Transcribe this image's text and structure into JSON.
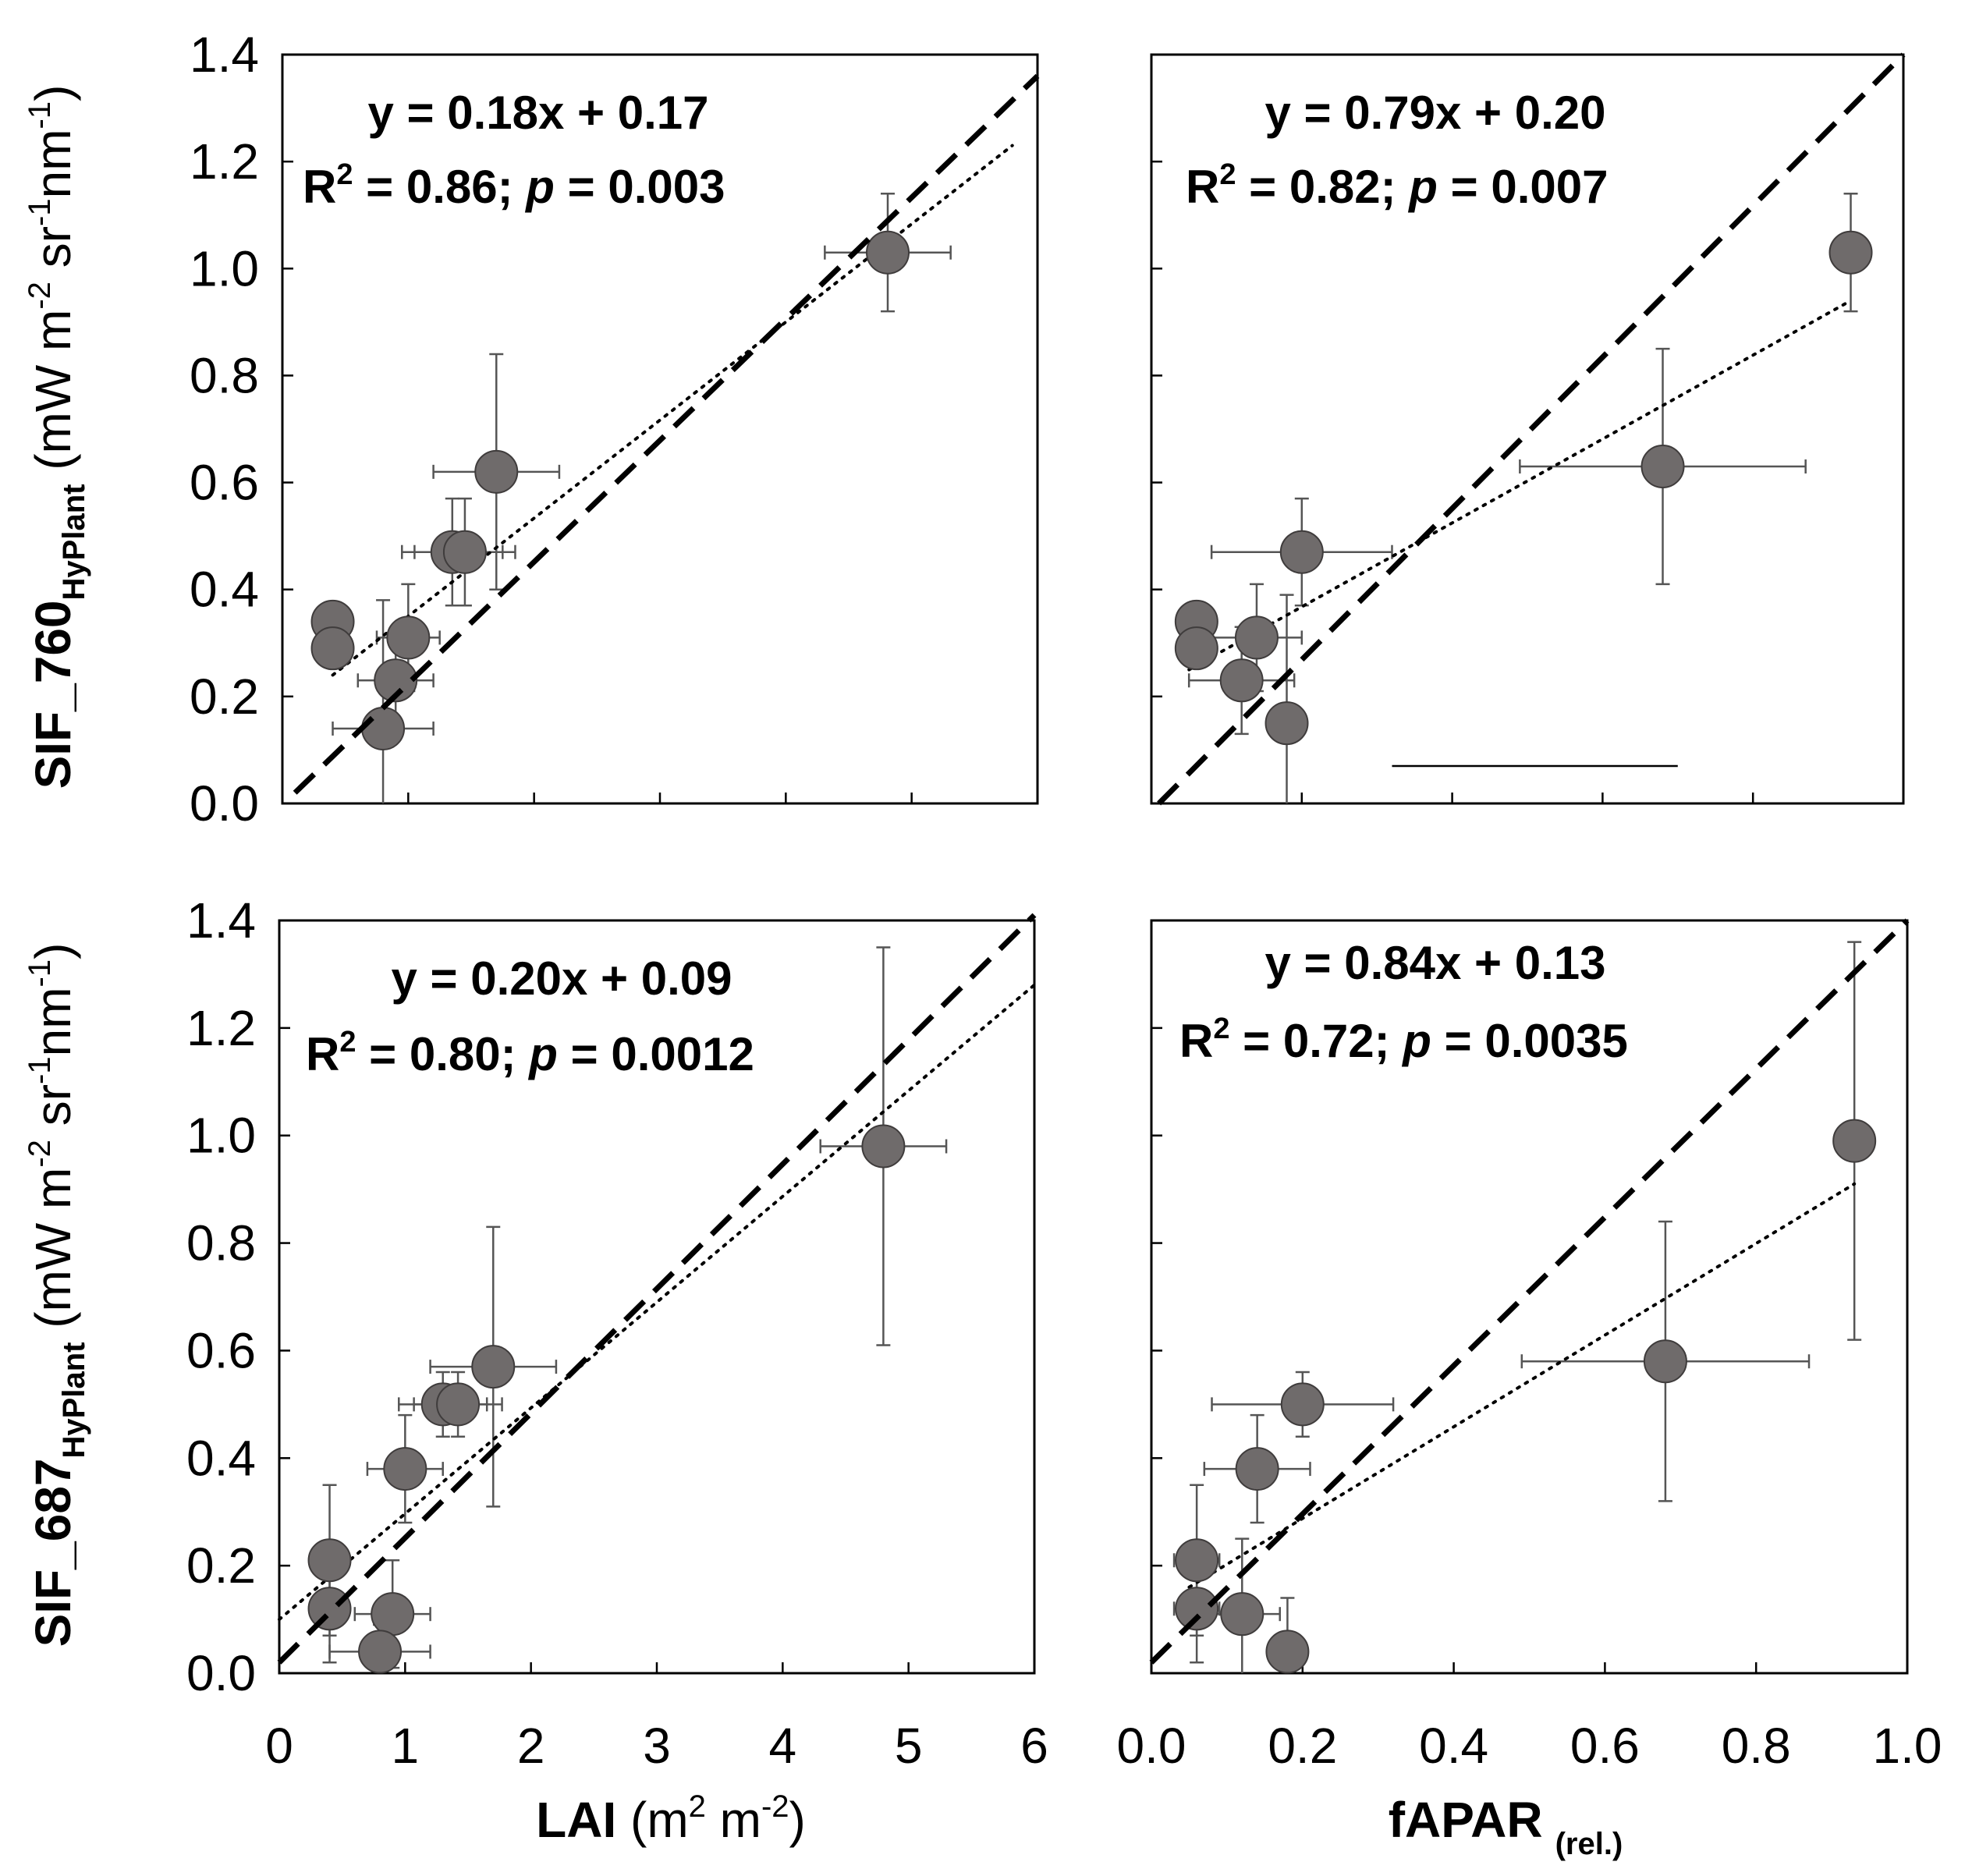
{
  "chart_data": [
    {
      "id": "p1",
      "type": "scatter",
      "annotations": {
        "equation": "y = 0.18x + 0.17",
        "r2_prefix": "R",
        "r2_sup": "2",
        "r2_mid": " = 0.86; ",
        "p_symbol": "p",
        "p_value": " = 0.003"
      },
      "xlim": [
        0,
        6
      ],
      "ylim": [
        0,
        1.4
      ],
      "x_ticks": [
        0,
        1,
        2,
        3,
        4,
        5,
        6
      ],
      "y_ticks": [
        0,
        0.2,
        0.4,
        0.6,
        0.8,
        1.0,
        1.2,
        1.4
      ],
      "y_tick_labels": [
        "0.0",
        "0.2",
        "0.4",
        "0.6",
        "0.8",
        "1.0",
        "1.2",
        "1.4"
      ],
      "dashed_line": {
        "x": [
          0.1,
          6
        ],
        "y": [
          0.02,
          1.36
        ]
      },
      "dotted_line": {
        "x": [
          0.4,
          5.8
        ],
        "y": [
          0.24,
          1.23
        ]
      },
      "points": [
        {
          "x": 4.81,
          "y": 1.03,
          "xerr": 0.5,
          "yerr": 0.11
        },
        {
          "x": 1.7,
          "y": 0.62,
          "xerr": 0.5,
          "yerr": 0.22
        },
        {
          "x": 1.35,
          "y": 0.47,
          "xerr": 0.4,
          "yerr": 0.1
        },
        {
          "x": 1.45,
          "y": 0.47,
          "xerr": 0.4,
          "yerr": 0.1
        },
        {
          "x": 0.4,
          "y": 0.34,
          "xerr": 0,
          "yerr": 0
        },
        {
          "x": 0.4,
          "y": 0.29,
          "xerr": 0,
          "yerr": 0
        },
        {
          "x": 1.0,
          "y": 0.31,
          "xerr": 0.25,
          "yerr": 0.1
        },
        {
          "x": 0.9,
          "y": 0.23,
          "xerr": 0.3,
          "yerr": 0.08
        },
        {
          "x": 0.8,
          "y": 0.14,
          "xerr": 0.4,
          "yerr": 0.24
        }
      ]
    },
    {
      "id": "p2",
      "type": "scatter",
      "annotations": {
        "equation": "y = 0.79x + 0.20",
        "r2_prefix": "R",
        "r2_sup": "2",
        "r2_mid": " = 0.82; ",
        "p_symbol": "p",
        "p_value": " = 0.007"
      },
      "xlim": [
        0,
        1.0
      ],
      "ylim": [
        0,
        1.4
      ],
      "x_ticks": [
        0,
        0.2,
        0.4,
        0.6,
        0.8,
        1.0
      ],
      "y_ticks": [
        0,
        0.2,
        0.4,
        0.6,
        0.8,
        1.0,
        1.2,
        1.4
      ],
      "dashed_line": {
        "x": [
          0.01,
          1.0
        ],
        "y": [
          0.0,
          1.4
        ]
      },
      "dotted_line": {
        "x": [
          0.05,
          0.93
        ],
        "y": [
          0.25,
          0.94
        ]
      },
      "stray_line": {
        "x": [
          0.32,
          0.7
        ],
        "y": [
          0.07,
          0.07
        ]
      },
      "points": [
        {
          "x": 0.93,
          "y": 1.03,
          "xerr": 0,
          "yerr": 0.11
        },
        {
          "x": 0.68,
          "y": 0.63,
          "xerr": 0.19,
          "yerr": 0.22
        },
        {
          "x": 0.2,
          "y": 0.47,
          "xerr": 0.12,
          "yerr": 0.1
        },
        {
          "x": 0.06,
          "y": 0.34,
          "xerr": 0.02,
          "yerr": 0
        },
        {
          "x": 0.06,
          "y": 0.29,
          "xerr": 0.02,
          "yerr": 0
        },
        {
          "x": 0.14,
          "y": 0.31,
          "xerr": 0.06,
          "yerr": 0.1
        },
        {
          "x": 0.12,
          "y": 0.23,
          "xerr": 0.07,
          "yerr": 0.1
        },
        {
          "x": 0.18,
          "y": 0.15,
          "xerr": 0.02,
          "yerr": 0.24
        }
      ]
    },
    {
      "id": "p3",
      "type": "scatter",
      "annotations": {
        "equation": "y = 0.20x + 0.09",
        "r2_prefix": "R",
        "r2_sup": "2",
        "r2_mid": " = 0.80; ",
        "p_symbol": "p",
        "p_value": " = 0.0012"
      },
      "xlim": [
        0,
        6
      ],
      "ylim": [
        0,
        1.4
      ],
      "x_ticks": [
        0,
        1,
        2,
        3,
        4,
        5,
        6
      ],
      "y_ticks": [
        0,
        0.2,
        0.4,
        0.6,
        0.8,
        1.0,
        1.2,
        1.4
      ],
      "y_tick_labels": [
        "0.0",
        "0.2",
        "0.4",
        "0.6",
        "0.8",
        "1.0",
        "1.2",
        "1.4"
      ],
      "dashed_line": {
        "x": [
          0,
          6
        ],
        "y": [
          0.02,
          1.41
        ]
      },
      "dotted_line": {
        "x": [
          0,
          6
        ],
        "y": [
          0.1,
          1.28
        ]
      },
      "points": [
        {
          "x": 4.8,
          "y": 0.98,
          "xerr": 0.5,
          "yerr": 0.37
        },
        {
          "x": 1.7,
          "y": 0.57,
          "xerr": 0.5,
          "yerr": 0.26
        },
        {
          "x": 1.3,
          "y": 0.5,
          "xerr": 0.35,
          "yerr": 0.06
        },
        {
          "x": 1.42,
          "y": 0.5,
          "xerr": 0.35,
          "yerr": 0.06
        },
        {
          "x": 1.0,
          "y": 0.38,
          "xerr": 0.3,
          "yerr": 0.1
        },
        {
          "x": 0.4,
          "y": 0.21,
          "xerr": 0.1,
          "yerr": 0.14
        },
        {
          "x": 0.4,
          "y": 0.12,
          "xerr": 0.1,
          "yerr": 0.1
        },
        {
          "x": 0.9,
          "y": 0.11,
          "xerr": 0.3,
          "yerr": 0.1
        },
        {
          "x": 0.8,
          "y": 0.04,
          "xerr": 0.4,
          "yerr": 0.05
        }
      ]
    },
    {
      "id": "p4",
      "type": "scatter",
      "annotations": {
        "equation": "y = 0.84x + 0.13",
        "r2_prefix": "R",
        "r2_sup": "2",
        "r2_mid": " = 0.72; ",
        "p_symbol": "p",
        "p_value": " = 0.0035"
      },
      "xlim": [
        0,
        1.0
      ],
      "ylim": [
        0,
        1.4
      ],
      "x_ticks": [
        0,
        0.2,
        0.4,
        0.6,
        0.8,
        1.0
      ],
      "x_tick_labels": [
        "0.0",
        "0.2",
        "0.4",
        "0.6",
        "0.8",
        "1.0"
      ],
      "y_ticks": [
        0,
        0.2,
        0.4,
        0.6,
        0.8,
        1.0,
        1.2,
        1.4
      ],
      "dashed_line": {
        "x": [
          0.0,
          1.0
        ],
        "y": [
          0.02,
          1.4
        ]
      },
      "dotted_line": {
        "x": [
          0.05,
          0.93
        ],
        "y": [
          0.16,
          0.91
        ]
      },
      "points": [
        {
          "x": 0.93,
          "y": 0.99,
          "xerr": 0,
          "yerr": 0.37
        },
        {
          "x": 0.68,
          "y": 0.58,
          "xerr": 0.19,
          "yerr": 0.26
        },
        {
          "x": 0.2,
          "y": 0.5,
          "xerr": 0.12,
          "yerr": 0.06
        },
        {
          "x": 0.14,
          "y": 0.38,
          "xerr": 0.07,
          "yerr": 0.1
        },
        {
          "x": 0.06,
          "y": 0.21,
          "xerr": 0.03,
          "yerr": 0.14
        },
        {
          "x": 0.06,
          "y": 0.12,
          "xerr": 0.03,
          "yerr": 0.1
        },
        {
          "x": 0.12,
          "y": 0.11,
          "xerr": 0.05,
          "yerr": 0.14
        },
        {
          "x": 0.18,
          "y": 0.04,
          "xerr": 0.02,
          "yerr": 0.1
        }
      ]
    }
  ],
  "x_axis_labels": {
    "left": {
      "main": "LAI",
      "unit_open": " (m",
      "sup1": "2",
      "unit_mid": " m",
      "sup2": "-2",
      "unit_close": ")"
    },
    "right": {
      "main": "fAPAR",
      "sub": "(rel.)"
    }
  },
  "y_axis_labels": {
    "top": {
      "main": "SIF_760",
      "sub": "HyPlant",
      "unit_open": " (mW m",
      "sup1": "-2",
      "unit_mid": " sr",
      "sup2": "-1",
      "unit_nm": "nm",
      "sup3": "-1",
      "unit_close": ")"
    },
    "bottom": {
      "main": "SIF_687",
      "sub": "HyPlant",
      "unit_open": " (mW m",
      "sup1": "-2",
      "unit_mid": " sr",
      "sup2": "-1",
      "unit_nm": "nm",
      "sup3": "-1",
      "unit_close": ")"
    }
  },
  "colors": {
    "marker_fill": "#6f6b6b",
    "marker_stroke": "#3f3c3c",
    "errorbar": "#555555",
    "line": "#000000"
  }
}
